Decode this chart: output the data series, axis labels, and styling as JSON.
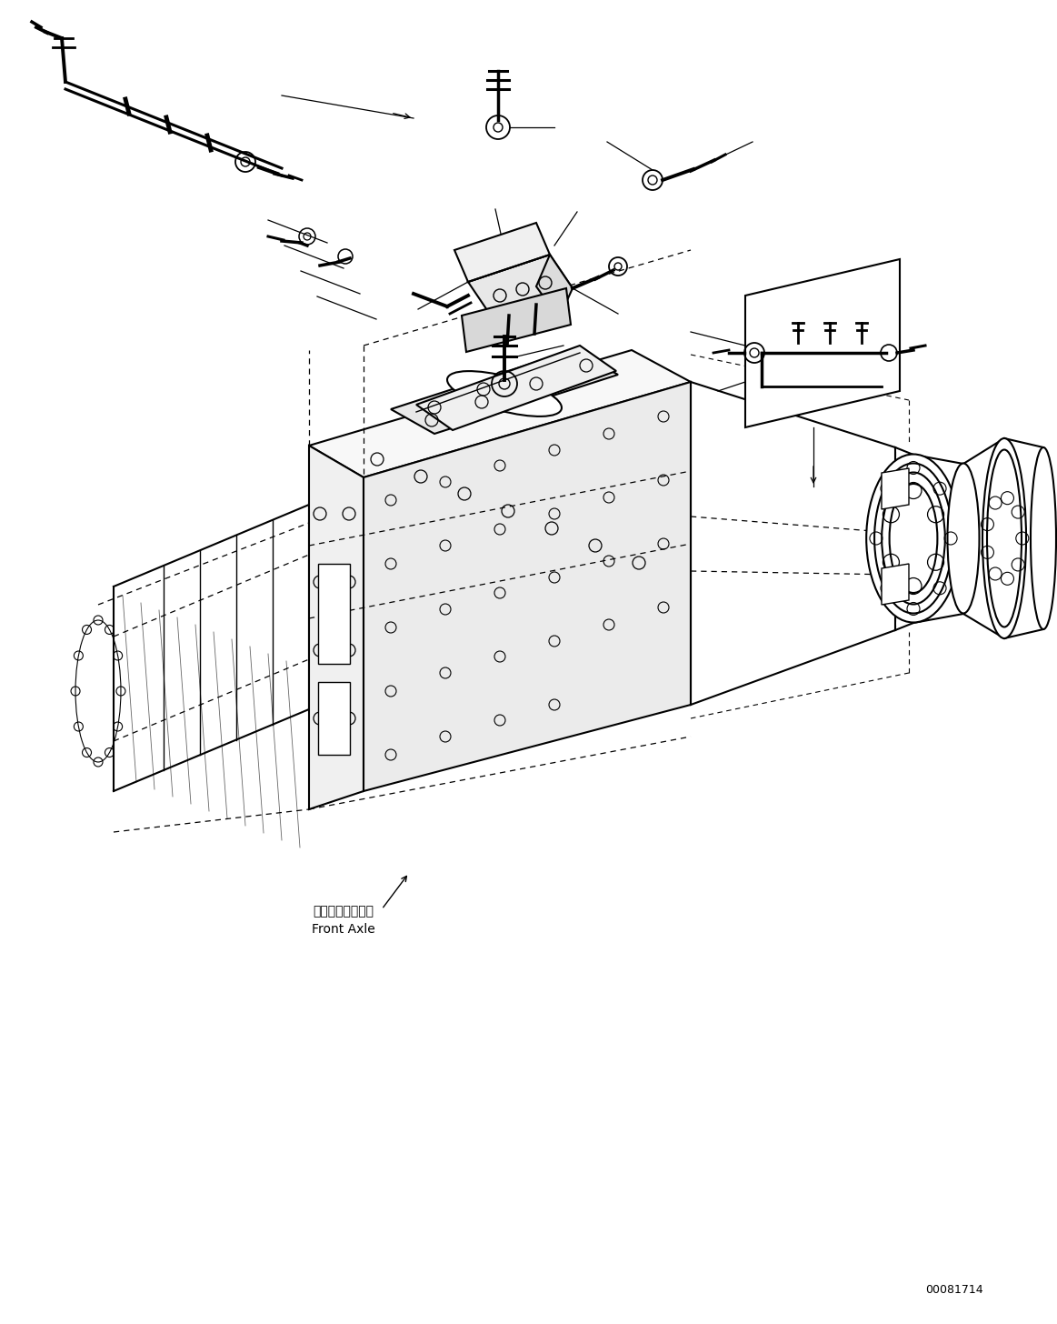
{
  "background_color": "#ffffff",
  "line_color": "#000000",
  "fig_width": 11.63,
  "fig_height": 14.56,
  "dpi": 100,
  "part_number": "00081714",
  "label_front_axle_jp": "フロントアクスル",
  "label_front_axle_en": "Front Axle"
}
